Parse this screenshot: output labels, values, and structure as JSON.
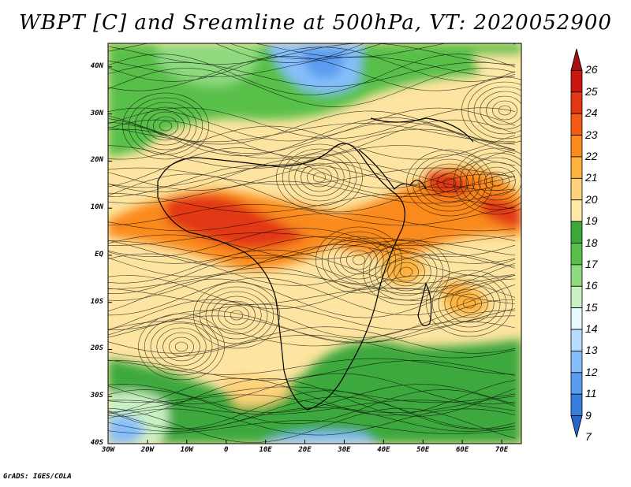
{
  "title": "WBPT [C] and Sreamline at 500hPa, VT: 2020052900",
  "footer": "GrADS: IGES/COLA",
  "map": {
    "lat_labels": [
      "40N",
      "30N",
      "20N",
      "10N",
      "EQ",
      "10S",
      "20S",
      "30S",
      "40S"
    ],
    "lat_values": [
      40,
      30,
      20,
      10,
      0,
      -10,
      -20,
      -30,
      -40
    ],
    "lon_labels": [
      "30W",
      "20W",
      "10W",
      "0",
      "10E",
      "20E",
      "30E",
      "40E",
      "50E",
      "60E",
      "70E"
    ],
    "lon_values": [
      -30,
      -20,
      -10,
      0,
      10,
      20,
      30,
      40,
      50,
      60,
      70
    ],
    "lat_range": [
      -40,
      45
    ],
    "lon_range": [
      -30,
      75
    ]
  },
  "colorbar": {
    "labels": [
      "26",
      "25",
      "24",
      "23",
      "22",
      "21",
      "20",
      "19",
      "18",
      "17",
      "16",
      "15",
      "14",
      "13",
      "12",
      "11",
      "9",
      "7"
    ],
    "colors": [
      "#a50f15",
      "#c8170f",
      "#e23712",
      "#f55a14",
      "#fa8a1c",
      "#fdb13e",
      "#fdd27a",
      "#fdeaa8",
      "#3ca83c",
      "#58c048",
      "#8fd97f",
      "#c9f0c3",
      "#e8f8ff",
      "#b8dcff",
      "#86befa",
      "#5a9df0",
      "#377fdf",
      "#2766c8"
    ],
    "colors_note": "colors listed top to bottom; top and bottom are triangular extension cells"
  }
}
